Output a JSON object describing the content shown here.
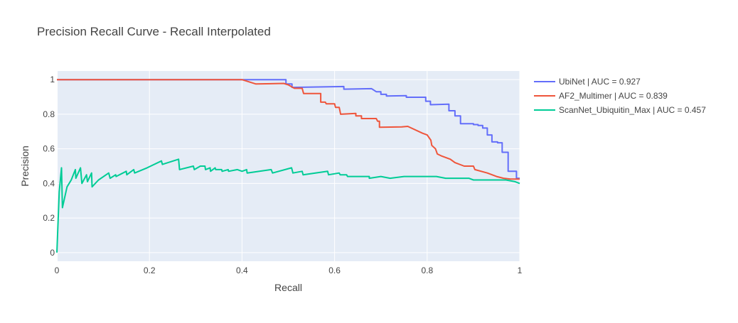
{
  "chart_data": {
    "type": "line",
    "title": "Precision Recall Curve - Recall Interpolated",
    "xlabel": "Recall",
    "ylabel": "Precision",
    "xlim": [
      0,
      1
    ],
    "ylim": [
      -0.05,
      1.05
    ],
    "xticks": [
      0,
      0.2,
      0.4,
      0.6,
      0.8,
      1
    ],
    "xtick_labels": [
      "0",
      "0.2",
      "0.4",
      "0.6",
      "0.8",
      "1"
    ],
    "yticks": [
      0,
      0.2,
      0.4,
      0.6,
      0.8,
      1
    ],
    "ytick_labels": [
      "0",
      "0.2",
      "0.4",
      "0.6",
      "0.8",
      "1"
    ],
    "grid": true,
    "legend_position": "right",
    "colors": {
      "plot_background": "#e5ecf6",
      "grid": "#ffffff",
      "text": "#444444",
      "title": "#444444"
    },
    "series": [
      {
        "name": "UbiNet | AUC = 0.927",
        "color": "#636efa",
        "points": [
          [
            0,
            1.0
          ],
          [
            0.495,
            1.0
          ],
          [
            0.495,
            0.975
          ],
          [
            0.508,
            0.975
          ],
          [
            0.508,
            0.955
          ],
          [
            0.62,
            0.96
          ],
          [
            0.62,
            0.945
          ],
          [
            0.68,
            0.948
          ],
          [
            0.69,
            0.93
          ],
          [
            0.7,
            0.93
          ],
          [
            0.7,
            0.915
          ],
          [
            0.712,
            0.915
          ],
          [
            0.712,
            0.905
          ],
          [
            0.755,
            0.907
          ],
          [
            0.755,
            0.898
          ],
          [
            0.797,
            0.898
          ],
          [
            0.797,
            0.875
          ],
          [
            0.807,
            0.875
          ],
          [
            0.807,
            0.855
          ],
          [
            0.847,
            0.858
          ],
          [
            0.847,
            0.82
          ],
          [
            0.86,
            0.82
          ],
          [
            0.86,
            0.79
          ],
          [
            0.872,
            0.79
          ],
          [
            0.872,
            0.745
          ],
          [
            0.9,
            0.745
          ],
          [
            0.9,
            0.74
          ],
          [
            0.91,
            0.74
          ],
          [
            0.91,
            0.735
          ],
          [
            0.92,
            0.735
          ],
          [
            0.92,
            0.72
          ],
          [
            0.93,
            0.72
          ],
          [
            0.93,
            0.68
          ],
          [
            0.94,
            0.68
          ],
          [
            0.94,
            0.64
          ],
          [
            0.952,
            0.64
          ],
          [
            0.952,
            0.635
          ],
          [
            0.962,
            0.635
          ],
          [
            0.962,
            0.58
          ],
          [
            0.975,
            0.58
          ],
          [
            0.975,
            0.47
          ],
          [
            0.993,
            0.47
          ],
          [
            0.993,
            0.43
          ],
          [
            1.0,
            0.43
          ]
        ]
      },
      {
        "name": "AF2_Multimer | AUC = 0.839",
        "color": "#ef553b",
        "points": [
          [
            0,
            1.0
          ],
          [
            0.4,
            1.0
          ],
          [
            0.43,
            0.975
          ],
          [
            0.49,
            0.978
          ],
          [
            0.5,
            0.97
          ],
          [
            0.513,
            0.95
          ],
          [
            0.53,
            0.95
          ],
          [
            0.533,
            0.92
          ],
          [
            0.57,
            0.92
          ],
          [
            0.57,
            0.87
          ],
          [
            0.58,
            0.87
          ],
          [
            0.582,
            0.86
          ],
          [
            0.6,
            0.86
          ],
          [
            0.602,
            0.84
          ],
          [
            0.61,
            0.84
          ],
          [
            0.613,
            0.8
          ],
          [
            0.646,
            0.805
          ],
          [
            0.646,
            0.79
          ],
          [
            0.658,
            0.79
          ],
          [
            0.658,
            0.775
          ],
          [
            0.69,
            0.775
          ],
          [
            0.693,
            0.76
          ],
          [
            0.697,
            0.76
          ],
          [
            0.697,
            0.725
          ],
          [
            0.745,
            0.727
          ],
          [
            0.758,
            0.73
          ],
          [
            0.79,
            0.69
          ],
          [
            0.8,
            0.68
          ],
          [
            0.808,
            0.65
          ],
          [
            0.81,
            0.62
          ],
          [
            0.818,
            0.6
          ],
          [
            0.822,
            0.57
          ],
          [
            0.83,
            0.56
          ],
          [
            0.85,
            0.54
          ],
          [
            0.86,
            0.52
          ],
          [
            0.88,
            0.5
          ],
          [
            0.9,
            0.5
          ],
          [
            0.903,
            0.48
          ],
          [
            0.93,
            0.46
          ],
          [
            0.95,
            0.44
          ],
          [
            0.965,
            0.43
          ],
          [
            0.98,
            0.425
          ],
          [
            1.0,
            0.425
          ]
        ]
      },
      {
        "name": "ScanNet_Ubiquitin_Max | AUC = 0.457",
        "color": "#00cc96",
        "points": [
          [
            0,
            0.0
          ],
          [
            0.005,
            0.35
          ],
          [
            0.01,
            0.49
          ],
          [
            0.012,
            0.26
          ],
          [
            0.022,
            0.38
          ],
          [
            0.031,
            0.42
          ],
          [
            0.04,
            0.48
          ],
          [
            0.041,
            0.43
          ],
          [
            0.051,
            0.49
          ],
          [
            0.054,
            0.4
          ],
          [
            0.064,
            0.45
          ],
          [
            0.066,
            0.41
          ],
          [
            0.075,
            0.46
          ],
          [
            0.076,
            0.38
          ],
          [
            0.09,
            0.42
          ],
          [
            0.112,
            0.46
          ],
          [
            0.115,
            0.43
          ],
          [
            0.127,
            0.45
          ],
          [
            0.128,
            0.44
          ],
          [
            0.15,
            0.47
          ],
          [
            0.151,
            0.45
          ],
          [
            0.166,
            0.48
          ],
          [
            0.168,
            0.46
          ],
          [
            0.195,
            0.49
          ],
          [
            0.226,
            0.53
          ],
          [
            0.228,
            0.51
          ],
          [
            0.263,
            0.54
          ],
          [
            0.265,
            0.48
          ],
          [
            0.295,
            0.5
          ],
          [
            0.297,
            0.48
          ],
          [
            0.31,
            0.5
          ],
          [
            0.32,
            0.5
          ],
          [
            0.321,
            0.48
          ],
          [
            0.331,
            0.49
          ],
          [
            0.332,
            0.47
          ],
          [
            0.342,
            0.49
          ],
          [
            0.343,
            0.48
          ],
          [
            0.356,
            0.48
          ],
          [
            0.357,
            0.47
          ],
          [
            0.37,
            0.48
          ],
          [
            0.371,
            0.47
          ],
          [
            0.39,
            0.48
          ],
          [
            0.4,
            0.47
          ],
          [
            0.41,
            0.48
          ],
          [
            0.411,
            0.46
          ],
          [
            0.463,
            0.48
          ],
          [
            0.466,
            0.46
          ],
          [
            0.507,
            0.49
          ],
          [
            0.51,
            0.46
          ],
          [
            0.53,
            0.47
          ],
          [
            0.532,
            0.45
          ],
          [
            0.585,
            0.47
          ],
          [
            0.587,
            0.45
          ],
          [
            0.61,
            0.46
          ],
          [
            0.612,
            0.45
          ],
          [
            0.626,
            0.45
          ],
          [
            0.628,
            0.44
          ],
          [
            0.66,
            0.44
          ],
          [
            0.675,
            0.44
          ],
          [
            0.675,
            0.43
          ],
          [
            0.7,
            0.44
          ],
          [
            0.72,
            0.43
          ],
          [
            0.75,
            0.44
          ],
          [
            0.77,
            0.44
          ],
          [
            0.8,
            0.44
          ],
          [
            0.82,
            0.44
          ],
          [
            0.84,
            0.43
          ],
          [
            0.87,
            0.43
          ],
          [
            0.89,
            0.43
          ],
          [
            0.9,
            0.42
          ],
          [
            0.93,
            0.42
          ],
          [
            0.96,
            0.42
          ],
          [
            0.97,
            0.42
          ],
          [
            0.99,
            0.41
          ],
          [
            1.0,
            0.4
          ]
        ]
      }
    ]
  }
}
